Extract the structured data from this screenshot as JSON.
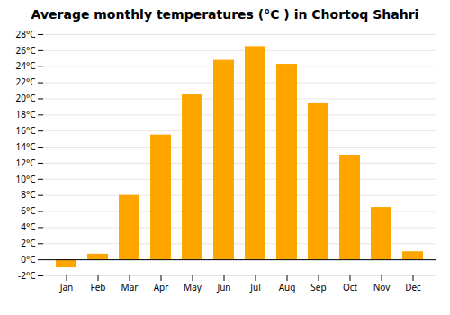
{
  "chart_data": {
    "type": "bar",
    "title": "Average monthly temperatures (°C ) in Chortoq Shahri",
    "categories": [
      "Jan",
      "Feb",
      "Mar",
      "Apr",
      "May",
      "Jun",
      "Jul",
      "Aug",
      "Sep",
      "Oct",
      "Nov",
      "Dec"
    ],
    "values": [
      -1.0,
      0.7,
      8.0,
      15.5,
      20.5,
      24.8,
      26.5,
      24.3,
      19.5,
      13.0,
      6.5,
      1.0
    ],
    "color": "#FFA500",
    "ylim": [
      -2,
      28
    ],
    "yticks": [
      {
        "value": -2,
        "label": "-2°C"
      },
      {
        "value": 0,
        "label": "0°C"
      },
      {
        "value": 2,
        "label": "2°C"
      },
      {
        "value": 4,
        "label": "4°C"
      },
      {
        "value": 6,
        "label": "6°C"
      },
      {
        "value": 8,
        "label": "8°C"
      },
      {
        "value": 10,
        "label": "10°C"
      },
      {
        "value": 12,
        "label": "12°C"
      },
      {
        "value": 14,
        "label": "14°C"
      },
      {
        "value": 16,
        "label": "16°C"
      },
      {
        "value": 18,
        "label": "18°C"
      },
      {
        "value": 20,
        "label": "20°C"
      },
      {
        "value": 22,
        "label": "22°C"
      },
      {
        "value": 24,
        "label": "24°C"
      },
      {
        "value": 26,
        "label": "26°C"
      },
      {
        "value": 28,
        "label": "28°C"
      }
    ],
    "grid": true
  }
}
